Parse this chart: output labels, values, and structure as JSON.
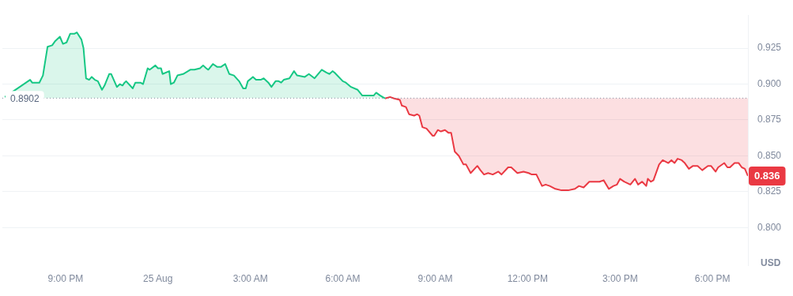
{
  "chart_data": {
    "type": "line",
    "ylabel": "USD",
    "legend": false,
    "grid": "y",
    "marker": "none",
    "line_style": "solid",
    "xlim": [
      "--08-24T18:57",
      "--08-25T19:09"
    ],
    "xticks": [
      {
        "value": "--08-24T21:00",
        "label": "9:00 PM"
      },
      {
        "value": "--08-25T00:00",
        "label": "25 Aug"
      },
      {
        "value": "--08-25T03:00",
        "label": "3:00 AM"
      },
      {
        "value": "--08-25T06:00",
        "label": "6:00 AM"
      },
      {
        "value": "--08-25T09:00",
        "label": "9:00 AM"
      },
      {
        "value": "--08-25T12:00",
        "label": "12:00 PM"
      },
      {
        "value": "--08-25T15:00",
        "label": "3:00 PM"
      },
      {
        "value": "--08-25T18:00",
        "label": "6:00 PM"
      }
    ],
    "ylim": [
      0.7735,
      0.948
    ],
    "yticks": [
      {
        "value": 0.8,
        "label": "0.800"
      },
      {
        "value": 0.825,
        "label": "0.825"
      },
      {
        "value": 0.85,
        "label": "0.850"
      },
      {
        "value": 0.875,
        "label": "0.875"
      },
      {
        "value": 0.9,
        "label": "0.900"
      },
      {
        "value": 0.925,
        "label": "0.925"
      }
    ],
    "ref_lines": [
      {
        "axis": "y",
        "value": 0.8902,
        "label": "0.8902",
        "line_style": "dotted",
        "color": "#808a9d"
      }
    ],
    "annotations": [
      {
        "text": "0.836",
        "x": "--08-25T19:09",
        "y": 0.836
      }
    ],
    "series": [
      {
        "color": "#16c784",
        "x": [
          "--08-24T19:02",
          "--08-24T19:43",
          "--08-24T19:51",
          "--08-24T19:55",
          "--08-24T20:03",
          "--08-24T20:09",
          "--08-24T20:16",
          "--08-24T20:25",
          "--08-24T20:34",
          "--08-24T20:40",
          "--08-24T20:49",
          "--08-24T20:55",
          "--08-24T21:02",
          "--08-24T21:09",
          "--08-24T21:17",
          "--08-24T21:22",
          "--08-24T21:31",
          "--08-24T21:35",
          "--08-24T21:40",
          "--08-24T21:46",
          "--08-24T21:51",
          "--08-24T21:57",
          "--08-24T22:03",
          "--08-24T22:11",
          "--08-24T22:16",
          "--08-24T22:25",
          "--08-24T22:29",
          "--08-24T22:40",
          "--08-24T22:46",
          "--08-24T22:51",
          "--08-24T22:55",
          "--08-24T22:58",
          "--08-24T23:11",
          "--08-24T23:16",
          "--08-24T23:26",
          "--08-24T23:31",
          "--08-24T23:40",
          "--08-24T23:44",
          "--08-24T23:55",
          "--08-25T00:00",
          "--08-25T00:06",
          "--08-25T00:09",
          "--08-25T00:22",
          "--08-25T00:25",
          "--08-25T00:31",
          "--08-25T00:38",
          "--08-25T00:49",
          "--08-25T01:03",
          "--08-25T01:11",
          "--08-25T01:22",
          "--08-25T01:28",
          "--08-25T01:34",
          "--08-25T01:38",
          "--08-25T01:47",
          "--08-25T01:55",
          "--08-25T02:03",
          "--08-25T02:11",
          "--08-25T02:19",
          "--08-25T02:28",
          "--08-25T02:38",
          "--08-25T02:46",
          "--08-25T02:51",
          "--08-25T02:55",
          "--08-25T03:05",
          "--08-25T03:11",
          "--08-25T03:20",
          "--08-25T03:26",
          "--08-25T03:35",
          "--08-25T03:41",
          "--08-25T03:49",
          "--08-25T03:55",
          "--08-25T04:00",
          "--08-25T04:05",
          "--08-25T04:16",
          "--08-25T04:25",
          "--08-25T04:31",
          "--08-25T04:46",
          "--08-25T04:54",
          "--08-25T05:05",
          "--08-25T05:19",
          "--08-25T05:28",
          "--08-25T05:34",
          "--08-25T05:40",
          "--08-25T05:44",
          "--08-25T06:00",
          "--08-25T06:06",
          "--08-25T06:16",
          "--08-25T06:29",
          "--08-25T06:38",
          "--08-25T06:44",
          "--08-25T06:49",
          "--08-25T07:00",
          "--08-25T07:05",
          "--08-25T07:13",
          "--08-25T07:22"
        ],
        "values": [
          0.891,
          null,
          0.903,
          0.901,
          0.901,
          0.901,
          0.906,
          0.926,
          0.927,
          0.93,
          0.933,
          0.928,
          0.929,
          0.935,
          0.935,
          0.936,
          0.931,
          0.925,
          0.904,
          0.903,
          0.905,
          0.903,
          0.902,
          0.896,
          0.899,
          0.907,
          0.907,
          0.898,
          0.9,
          0.899,
          0.901,
          0.902,
          0.897,
          0.901,
          0.901,
          0.9,
          0.911,
          0.91,
          0.913,
          0.911,
          0.911,
          0.907,
          0.909,
          0.9,
          0.901,
          0.906,
          0.907,
          0.91,
          0.91,
          0.911,
          0.913,
          0.911,
          0.91,
          0.914,
          0.912,
          0.912,
          0.914,
          0.907,
          0.906,
          0.902,
          0.897,
          0.897,
          0.902,
          0.905,
          0.903,
          0.903,
          0.904,
          0.901,
          0.898,
          0.902,
          0.902,
          0.901,
          0.903,
          0.904,
          0.909,
          0.906,
          0.905,
          0.907,
          0.904,
          0.91,
          0.908,
          0.907,
          0.909,
          0.908,
          0.902,
          0.901,
          0.898,
          0.896,
          0.892,
          0.892,
          0.892,
          0.892,
          0.894,
          0.892,
          0.89
        ]
      },
      {
        "color": "#ea3943",
        "x": [
          "--08-25T07:22",
          "--08-25T07:32",
          "--08-25T07:40",
          "--08-25T07:51",
          "--08-25T07:55",
          "--08-25T08:03",
          "--08-25T08:09",
          "--08-25T08:19",
          "--08-25T08:25",
          "--08-25T08:29",
          "--08-25T08:35",
          "--08-25T08:43",
          "--08-25T08:55",
          "--08-25T08:58",
          "--08-25T09:05",
          "--08-25T09:11",
          "--08-25T09:19",
          "--08-25T09:26",
          "--08-25T09:31",
          "--08-25T09:38",
          "--08-25T09:46",
          "--08-25T09:55",
          "--08-25T10:00",
          "--08-25T10:09",
          "--08-25T10:22",
          "--08-25T10:28",
          "--08-25T10:35",
          "--08-25T10:43",
          "--08-25T10:52",
          "--08-25T11:03",
          "--08-25T11:09",
          "--08-25T11:22",
          "--08-25T11:28",
          "--08-25T11:40",
          "--08-25T11:52",
          "--08-25T12:02",
          "--08-25T12:08",
          "--08-25T12:17",
          "--08-25T12:28",
          "--08-25T12:35",
          "--08-25T12:43",
          "--08-25T12:54",
          "--08-25T13:06",
          "--08-25T13:19",
          "--08-25T13:32",
          "--08-25T13:40",
          "--08-25T13:49",
          "--08-25T14:00",
          "--08-25T14:11",
          "--08-25T14:20",
          "--08-25T14:28",
          "--08-25T14:38",
          "--08-25T14:47",
          "--08-25T14:54",
          "--08-25T15:00",
          "--08-25T15:08",
          "--08-25T15:20",
          "--08-25T15:29",
          "--08-25T15:35",
          "--08-25T15:43",
          "--08-25T15:51",
          "--08-25T15:54",
          "--08-25T16:00",
          "--08-25T16:05",
          "--08-25T16:16",
          "--08-25T16:23",
          "--08-25T16:34",
          "--08-25T16:40",
          "--08-25T16:46",
          "--08-25T16:52",
          "--08-25T17:00",
          "--08-25T17:06",
          "--08-25T17:14",
          "--08-25T17:22",
          "--08-25T17:31",
          "--08-25T17:40",
          "--08-25T17:51",
          "--08-25T17:57",
          "--08-25T18:06",
          "--08-25T18:11",
          "--08-25T18:23",
          "--08-25T18:29",
          "--08-25T18:34",
          "--08-25T18:43",
          "--08-25T18:51",
          "--08-25T18:57",
          "--08-25T19:03",
          "--08-25T19:09"
        ],
        "values": [
          0.89,
          0.891,
          0.89,
          0.889,
          0.885,
          0.884,
          0.879,
          0.878,
          0.879,
          0.878,
          0.87,
          0.869,
          0.864,
          0.864,
          0.868,
          0.867,
          0.868,
          0.866,
          0.866,
          0.853,
          0.85,
          0.844,
          0.844,
          0.838,
          0.843,
          0.84,
          0.837,
          0.838,
          0.837,
          0.839,
          0.837,
          0.842,
          0.842,
          0.838,
          0.839,
          0.838,
          0.837,
          0.837,
          0.829,
          0.83,
          0.829,
          0.827,
          0.826,
          0.826,
          0.827,
          0.829,
          0.828,
          0.832,
          0.832,
          0.832,
          0.833,
          0.827,
          0.829,
          0.83,
          0.834,
          0.832,
          0.83,
          0.834,
          0.83,
          0.832,
          0.829,
          0.834,
          0.832,
          0.833,
          0.844,
          0.847,
          0.845,
          0.847,
          0.845,
          0.848,
          0.847,
          0.845,
          0.841,
          0.843,
          0.843,
          0.84,
          0.843,
          0.843,
          0.839,
          0.842,
          0.845,
          0.842,
          0.842,
          0.845,
          0.845,
          0.842,
          0.841,
          0.836
        ]
      }
    ]
  }
}
